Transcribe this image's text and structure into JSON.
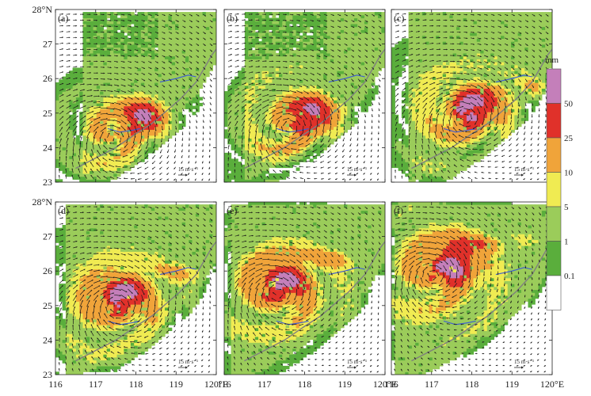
{
  "figure": {
    "panels": [
      {
        "id": "a",
        "label": "(a)",
        "reference_vector": "15 m·s⁻¹"
      },
      {
        "id": "b",
        "label": "(b)",
        "reference_vector": "15 m·s⁻¹"
      },
      {
        "id": "c",
        "label": "(c)",
        "reference_vector": "15 m·s⁻¹"
      },
      {
        "id": "d",
        "label": "(d)",
        "reference_vector": "15 m·s⁻¹"
      },
      {
        "id": "e",
        "label": "(e)",
        "reference_vector": "15 m·s⁻¹"
      },
      {
        "id": "f",
        "label": "(f)",
        "reference_vector": "15 m·s⁻¹"
      }
    ],
    "lat_ticks": [
      "23",
      "24",
      "25",
      "26",
      "27",
      "28°N"
    ],
    "lon_ticks": [
      "116",
      "117",
      "118",
      "119",
      "120°E"
    ],
    "colorbar": {
      "unit": "mm",
      "levels": [
        "0.1",
        "1",
        "5",
        "10",
        "25",
        "50"
      ],
      "colors": [
        "#ffffff",
        "#5aae3c",
        "#9bcc5a",
        "#f0eb52",
        "#f0a43a",
        "#e0312a",
        "#c47fba"
      ]
    }
  },
  "chart_data": {
    "type": "heatmap",
    "variable": "precipitation with wind vectors",
    "unit": "mm",
    "lon_range": [
      116,
      120
    ],
    "lat_range": [
      23,
      28
    ],
    "panels": [
      {
        "id": "a",
        "max_rain_center": {
          "lon": 118.1,
          "lat": 24.8
        },
        "circulation_center": {
          "lon": 117.4,
          "lat": 24.3
        }
      },
      {
        "id": "b",
        "max_rain_center": {
          "lon": 118.1,
          "lat": 24.9
        },
        "circulation_center": {
          "lon": 117.6,
          "lat": 24.6
        }
      },
      {
        "id": "c",
        "max_rain_center": {
          "lon": 118.0,
          "lat": 25.1
        },
        "circulation_center": {
          "lon": 117.8,
          "lat": 24.9
        }
      },
      {
        "id": "d",
        "max_rain_center": {
          "lon": 117.6,
          "lat": 25.3
        },
        "circulation_center": {
          "lon": 117.5,
          "lat": 25.0
        }
      },
      {
        "id": "e",
        "max_rain_center": {
          "lon": 117.4,
          "lat": 25.7
        },
        "circulation_center": {
          "lon": 117.3,
          "lat": 25.4
        }
      },
      {
        "id": "f",
        "max_rain_center": {
          "lon": 117.5,
          "lat": 26.2
        },
        "circulation_center": {
          "lon": 117.0,
          "lat": 25.9
        }
      }
    ]
  }
}
